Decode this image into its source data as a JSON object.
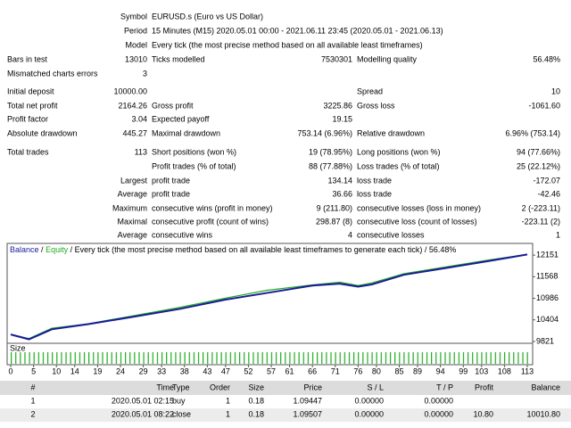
{
  "report": {
    "rows": [
      {
        "c1": {
          "label": "Symbol"
        },
        "wide": "EURUSD.s (Euro vs US Dollar)"
      },
      {
        "c1": {
          "label": "Period"
        },
        "wide": "15 Minutes (M15) 2020.05.01 00:00 - 2021.06.11 23:45 (2020.05.01 - 2021.06.13)"
      },
      {
        "c1": {
          "label": "Model"
        },
        "wide": "Every tick (the most precise method based on all available least timeframes)"
      },
      {
        "c1": {
          "label": "Bars in test",
          "value": "13010"
        },
        "c2": {
          "label": "Ticks modelled",
          "value": "7530301"
        },
        "c3": {
          "label": "Modelling quality",
          "value": "56.48%"
        }
      },
      {
        "c1": {
          "label": "Mismatched charts errors",
          "value": "3"
        }
      },
      {
        "c1": {
          "label": "Initial deposit",
          "value": "10000.00"
        },
        "c3": {
          "label": "Spread",
          "value": "10"
        }
      },
      {
        "c1": {
          "label": "Total net profit",
          "value": "2164.26"
        },
        "c2": {
          "label": "Gross profit",
          "value": "3225.86"
        },
        "c3": {
          "label": "Gross loss",
          "value": "-1061.60"
        }
      },
      {
        "c1": {
          "label": "Profit factor",
          "value": "3.04"
        },
        "c2": {
          "label": "Expected payoff",
          "value": "19.15"
        }
      },
      {
        "c1": {
          "label": "Absolute drawdown",
          "value": "445.27"
        },
        "c2": {
          "label": "Maximal drawdown",
          "value": "753.14 (6.96%)"
        },
        "c3": {
          "label": "Relative drawdown",
          "value": "6.96% (753.14)"
        }
      },
      {
        "c1": {
          "label": "Total trades",
          "value": "113"
        },
        "c2": {
          "label": "Short positions (won %)",
          "value": "19 (78.95%)"
        },
        "c3": {
          "label": "Long positions (won %)",
          "value": "94 (77.66%)"
        }
      },
      {
        "c2": {
          "label": "Profit trades (% of total)",
          "value": "88 (77.88%)"
        },
        "c3": {
          "label": "Loss trades (% of total)",
          "value": "25 (22.12%)"
        }
      },
      {
        "c1": {
          "label": "Largest"
        },
        "c2": {
          "label": "profit trade",
          "value": "134.14"
        },
        "c3": {
          "label": "loss trade",
          "value": "-172.07"
        }
      },
      {
        "c1": {
          "label": "Average"
        },
        "c2": {
          "label": "profit trade",
          "value": "36.66"
        },
        "c3": {
          "label": "loss trade",
          "value": "-42.46"
        }
      },
      {
        "c1": {
          "label": "Maximum"
        },
        "c2": {
          "label": "consecutive wins (profit in money)",
          "value": "9 (211.80)"
        },
        "c3": {
          "label": "consecutive losses (loss in money)",
          "value": "2 (-223.11)"
        }
      },
      {
        "c1": {
          "label": "Maximal"
        },
        "c2": {
          "label": "consecutive profit (count of wins)",
          "value": "298.87 (8)"
        },
        "c3": {
          "label": "consecutive loss (count of losses)",
          "value": "-223.11 (2)"
        }
      },
      {
        "c1": {
          "label": "Average"
        },
        "c2": {
          "label": "consecutive wins",
          "value": "4"
        },
        "c3": {
          "label": "consecutive losses",
          "value": "1"
        }
      }
    ]
  },
  "graph": {
    "type": "line",
    "balance_label": "Balance",
    "equity_label": "Equity",
    "separator": "/",
    "description": "Every tick (the most precise method based on all available least timeframes to generate each tick) / 56.48%",
    "size_label": "Size",
    "xlim": [
      0,
      113
    ],
    "xticks": [
      0,
      5,
      10,
      14,
      19,
      24,
      29,
      33,
      38,
      43,
      47,
      52,
      57,
      61,
      66,
      71,
      76,
      80,
      85,
      89,
      94,
      99,
      103,
      108,
      113
    ],
    "ylim": [
      9772,
      12467
    ],
    "yticks": [
      12151,
      11568,
      10986,
      10404,
      9821
    ],
    "series": [
      {
        "name": "Equity",
        "color": "#22aa22",
        "x": [
          0,
          4,
          9,
          17,
          27,
          37,
          47,
          56,
          66,
          72,
          76,
          79,
          86,
          95,
          105,
          113
        ],
        "values": [
          10010,
          9900,
          10180,
          10300,
          10520,
          10740,
          10990,
          11200,
          11350,
          11420,
          11330,
          11400,
          11650,
          11830,
          12030,
          12170
        ]
      },
      {
        "name": "Balance",
        "color": "#1a1a9a",
        "x": [
          0,
          4,
          9,
          17,
          27,
          37,
          47,
          56,
          66,
          72,
          76,
          79,
          86,
          95,
          105,
          113
        ],
        "values": [
          10010,
          9880,
          10150,
          10290,
          10490,
          10700,
          10950,
          11130,
          11330,
          11380,
          11300,
          11360,
          11620,
          11800,
          12000,
          12170
        ]
      }
    ]
  },
  "table": {
    "columns": [
      "#",
      "Time",
      "Type",
      "Order",
      "Size",
      "Price",
      "S / L",
      "T / P",
      "Profit",
      "Balance"
    ],
    "rows": [
      [
        "1",
        "2020.05.01 02:15",
        "buy",
        "1",
        "0.18",
        "1.09447",
        "0.00000",
        "0.00000"
      ],
      [
        "2",
        "2020.05.01 08:22",
        "close",
        "1",
        "0.18",
        "1.09507",
        "0.00000",
        "0.00000",
        "10.80",
        "10010.80"
      ]
    ]
  }
}
